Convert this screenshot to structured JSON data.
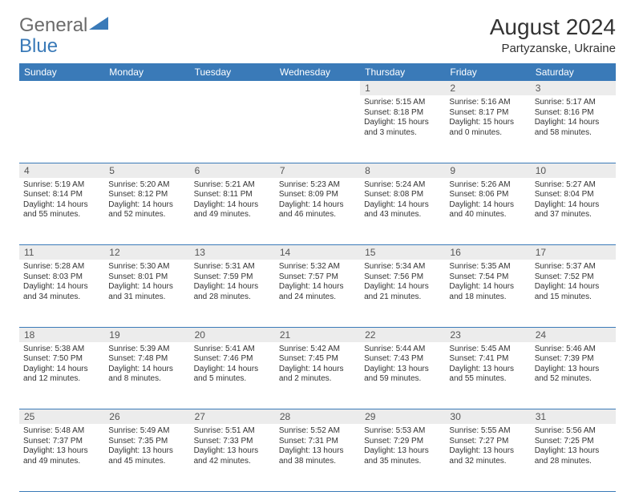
{
  "logo": {
    "text1": "General",
    "text2": "Blue"
  },
  "title": "August 2024",
  "location": "Partyzanske, Ukraine",
  "colors": {
    "header_bg": "#3a7ab8",
    "daynum_bg": "#ececec",
    "border": "#3a7ab8",
    "text": "#333333",
    "logo_gray": "#6b6b6b",
    "logo_blue": "#3a7ab8"
  },
  "typography": {
    "title_fontsize": 28,
    "location_fontsize": 15,
    "logo_fontsize": 24,
    "dayheader_fontsize": 12,
    "daynum_fontsize": 12,
    "cell_fontsize": 10
  },
  "dayNames": [
    "Sunday",
    "Monday",
    "Tuesday",
    "Wednesday",
    "Thursday",
    "Friday",
    "Saturday"
  ],
  "weeks": [
    [
      null,
      null,
      null,
      null,
      {
        "d": "1",
        "sr": "5:15 AM",
        "ss": "8:18 PM",
        "dl": "15 hours and 3 minutes."
      },
      {
        "d": "2",
        "sr": "5:16 AM",
        "ss": "8:17 PM",
        "dl": "15 hours and 0 minutes."
      },
      {
        "d": "3",
        "sr": "5:17 AM",
        "ss": "8:16 PM",
        "dl": "14 hours and 58 minutes."
      }
    ],
    [
      {
        "d": "4",
        "sr": "5:19 AM",
        "ss": "8:14 PM",
        "dl": "14 hours and 55 minutes."
      },
      {
        "d": "5",
        "sr": "5:20 AM",
        "ss": "8:12 PM",
        "dl": "14 hours and 52 minutes."
      },
      {
        "d": "6",
        "sr": "5:21 AM",
        "ss": "8:11 PM",
        "dl": "14 hours and 49 minutes."
      },
      {
        "d": "7",
        "sr": "5:23 AM",
        "ss": "8:09 PM",
        "dl": "14 hours and 46 minutes."
      },
      {
        "d": "8",
        "sr": "5:24 AM",
        "ss": "8:08 PM",
        "dl": "14 hours and 43 minutes."
      },
      {
        "d": "9",
        "sr": "5:26 AM",
        "ss": "8:06 PM",
        "dl": "14 hours and 40 minutes."
      },
      {
        "d": "10",
        "sr": "5:27 AM",
        "ss": "8:04 PM",
        "dl": "14 hours and 37 minutes."
      }
    ],
    [
      {
        "d": "11",
        "sr": "5:28 AM",
        "ss": "8:03 PM",
        "dl": "14 hours and 34 minutes."
      },
      {
        "d": "12",
        "sr": "5:30 AM",
        "ss": "8:01 PM",
        "dl": "14 hours and 31 minutes."
      },
      {
        "d": "13",
        "sr": "5:31 AM",
        "ss": "7:59 PM",
        "dl": "14 hours and 28 minutes."
      },
      {
        "d": "14",
        "sr": "5:32 AM",
        "ss": "7:57 PM",
        "dl": "14 hours and 24 minutes."
      },
      {
        "d": "15",
        "sr": "5:34 AM",
        "ss": "7:56 PM",
        "dl": "14 hours and 21 minutes."
      },
      {
        "d": "16",
        "sr": "5:35 AM",
        "ss": "7:54 PM",
        "dl": "14 hours and 18 minutes."
      },
      {
        "d": "17",
        "sr": "5:37 AM",
        "ss": "7:52 PM",
        "dl": "14 hours and 15 minutes."
      }
    ],
    [
      {
        "d": "18",
        "sr": "5:38 AM",
        "ss": "7:50 PM",
        "dl": "14 hours and 12 minutes."
      },
      {
        "d": "19",
        "sr": "5:39 AM",
        "ss": "7:48 PM",
        "dl": "14 hours and 8 minutes."
      },
      {
        "d": "20",
        "sr": "5:41 AM",
        "ss": "7:46 PM",
        "dl": "14 hours and 5 minutes."
      },
      {
        "d": "21",
        "sr": "5:42 AM",
        "ss": "7:45 PM",
        "dl": "14 hours and 2 minutes."
      },
      {
        "d": "22",
        "sr": "5:44 AM",
        "ss": "7:43 PM",
        "dl": "13 hours and 59 minutes."
      },
      {
        "d": "23",
        "sr": "5:45 AM",
        "ss": "7:41 PM",
        "dl": "13 hours and 55 minutes."
      },
      {
        "d": "24",
        "sr": "5:46 AM",
        "ss": "7:39 PM",
        "dl": "13 hours and 52 minutes."
      }
    ],
    [
      {
        "d": "25",
        "sr": "5:48 AM",
        "ss": "7:37 PM",
        "dl": "13 hours and 49 minutes."
      },
      {
        "d": "26",
        "sr": "5:49 AM",
        "ss": "7:35 PM",
        "dl": "13 hours and 45 minutes."
      },
      {
        "d": "27",
        "sr": "5:51 AM",
        "ss": "7:33 PM",
        "dl": "13 hours and 42 minutes."
      },
      {
        "d": "28",
        "sr": "5:52 AM",
        "ss": "7:31 PM",
        "dl": "13 hours and 38 minutes."
      },
      {
        "d": "29",
        "sr": "5:53 AM",
        "ss": "7:29 PM",
        "dl": "13 hours and 35 minutes."
      },
      {
        "d": "30",
        "sr": "5:55 AM",
        "ss": "7:27 PM",
        "dl": "13 hours and 32 minutes."
      },
      {
        "d": "31",
        "sr": "5:56 AM",
        "ss": "7:25 PM",
        "dl": "13 hours and 28 minutes."
      }
    ]
  ],
  "labels": {
    "sunrise": "Sunrise: ",
    "sunset": "Sunset: ",
    "daylight": "Daylight: "
  }
}
